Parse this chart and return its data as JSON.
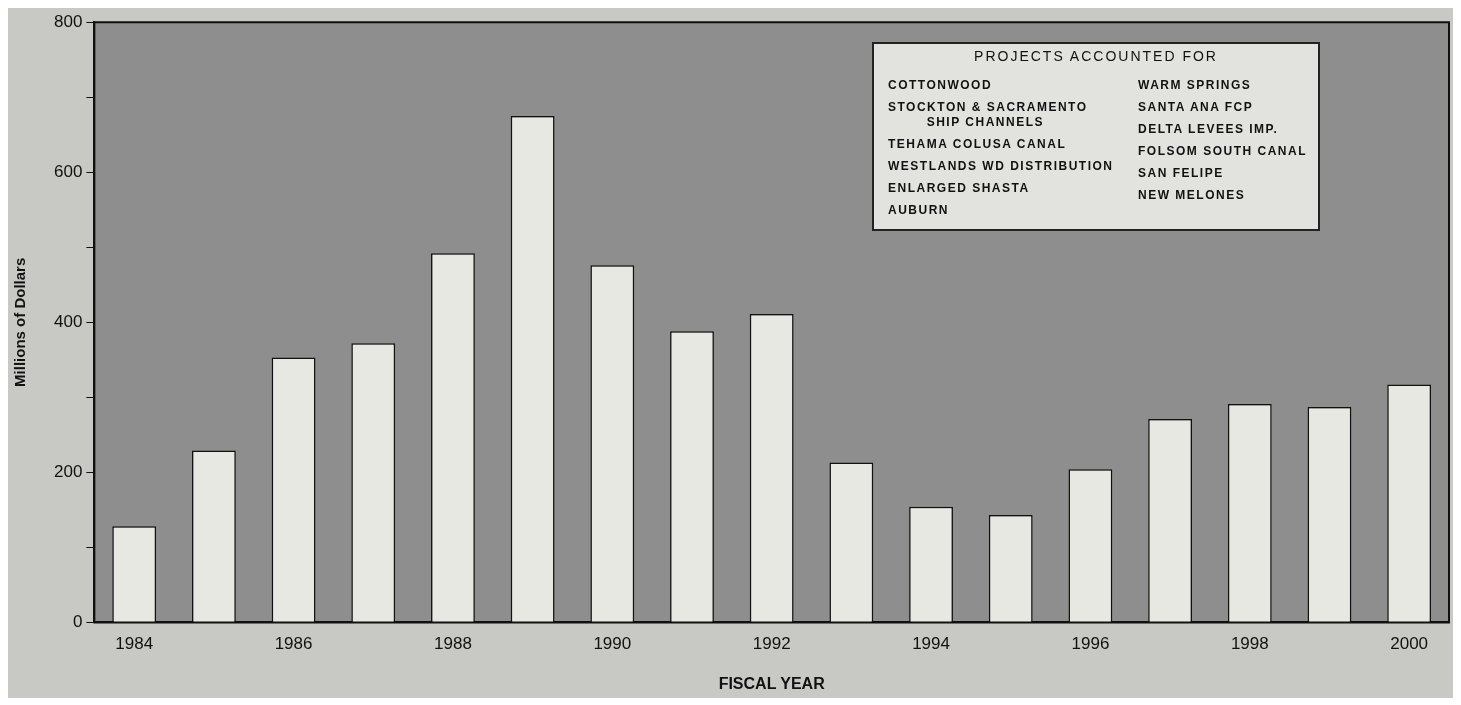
{
  "chart_data": {
    "type": "bar",
    "xlabel": "FISCAL YEAR",
    "ylabel": "Millions of Dollars",
    "categories": [
      "1984",
      null,
      "1986",
      null,
      "1988",
      null,
      "1990",
      null,
      "1992",
      null,
      "1994",
      null,
      "1996",
      null,
      "1998",
      null,
      "2000"
    ],
    "values": [
      128,
      229,
      353,
      372,
      492,
      675,
      476,
      388,
      411,
      213,
      154,
      143,
      204,
      271,
      291,
      287,
      317
    ],
    "color": "#e8e8e2",
    "ylim": [
      0,
      800
    ],
    "yticks": [
      0,
      {
        "value": 100,
        "label": null
      },
      200,
      {
        "value": 300,
        "label": null
      },
      400,
      {
        "value": 500,
        "label": null
      },
      600,
      {
        "value": 700,
        "label": null
      },
      800
    ],
    "legend": false,
    "annotations": [
      "PROJECTS ACCOUNTED FOR",
      "COTTONWOOD",
      "STOCKTON & SACRAMENTO\nSHIP CHANNELS",
      "TEHAMA COLUSA CANAL",
      "WESTLANDS WD DISTRIBUTION",
      "ENLARGED SHASTA",
      "AUBURN",
      "WARM SPRINGS",
      "SANTA ANA FCP",
      "DELTA LEVEES IMP.",
      "FOLSOM SOUTH CANAL",
      "SAN FELIPE",
      "NEW MELONES"
    ]
  }
}
